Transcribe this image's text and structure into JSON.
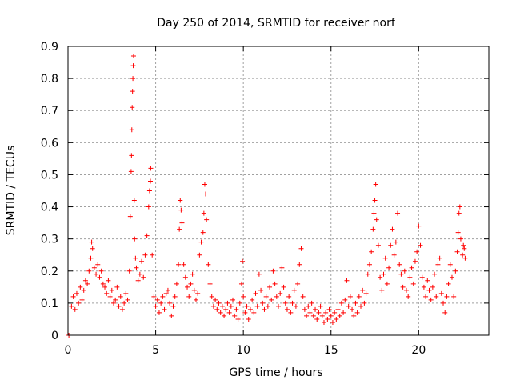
{
  "chart_data": {
    "type": "scatter",
    "title": "Day 250 of 2014, SRMTID for receiver norf",
    "xlabel": "GPS time / hours",
    "ylabel": "SRMTID / TECUs",
    "xlim": [
      0,
      24
    ],
    "ylim": [
      0,
      0.9
    ],
    "x_ticks": [
      0,
      5,
      10,
      15,
      20
    ],
    "x_tick_labels": [
      "0",
      "5",
      "10",
      "15",
      "20"
    ],
    "y_ticks": [
      0,
      0.1,
      0.2,
      0.3,
      0.4,
      0.5,
      0.6,
      0.7,
      0.8,
      0.9
    ],
    "y_tick_labels": [
      "0",
      "0.1",
      "0.2",
      "0.3",
      "0.4",
      "0.5",
      "0.6",
      "0.7",
      "0.8",
      "0.9"
    ],
    "grid": true,
    "legend": "none",
    "marker": "+",
    "series_color": "#ff0000",
    "series": [
      {
        "name": "SRMTID",
        "points": [
          [
            0.05,
            0.0
          ],
          [
            0.2,
            0.09
          ],
          [
            0.3,
            0.12
          ],
          [
            0.4,
            0.08
          ],
          [
            0.5,
            0.13
          ],
          [
            0.6,
            0.1
          ],
          [
            0.7,
            0.15
          ],
          [
            0.8,
            0.11
          ],
          [
            0.9,
            0.14
          ],
          [
            1.0,
            0.17
          ],
          [
            1.1,
            0.16
          ],
          [
            1.2,
            0.2
          ],
          [
            1.3,
            0.24
          ],
          [
            1.35,
            0.29
          ],
          [
            1.4,
            0.27
          ],
          [
            1.5,
            0.21
          ],
          [
            1.6,
            0.19
          ],
          [
            1.7,
            0.22
          ],
          [
            1.8,
            0.18
          ],
          [
            1.9,
            0.2
          ],
          [
            2.0,
            0.16
          ],
          [
            2.1,
            0.15
          ],
          [
            2.2,
            0.13
          ],
          [
            2.3,
            0.17
          ],
          [
            2.4,
            0.12
          ],
          [
            2.5,
            0.14
          ],
          [
            2.6,
            0.1
          ],
          [
            2.7,
            0.11
          ],
          [
            2.8,
            0.15
          ],
          [
            2.9,
            0.09
          ],
          [
            3.0,
            0.12
          ],
          [
            3.1,
            0.08
          ],
          [
            3.2,
            0.1
          ],
          [
            3.3,
            0.13
          ],
          [
            3.4,
            0.11
          ],
          [
            3.5,
            0.2
          ],
          [
            3.55,
            0.37
          ],
          [
            3.6,
            0.51
          ],
          [
            3.62,
            0.56
          ],
          [
            3.64,
            0.64
          ],
          [
            3.66,
            0.71
          ],
          [
            3.68,
            0.76
          ],
          [
            3.7,
            0.8
          ],
          [
            3.72,
            0.84
          ],
          [
            3.74,
            0.87
          ],
          [
            3.78,
            0.42
          ],
          [
            3.8,
            0.3
          ],
          [
            3.85,
            0.24
          ],
          [
            3.9,
            0.21
          ],
          [
            4.0,
            0.17
          ],
          [
            4.1,
            0.19
          ],
          [
            4.2,
            0.23
          ],
          [
            4.3,
            0.18
          ],
          [
            4.4,
            0.25
          ],
          [
            4.5,
            0.31
          ],
          [
            4.6,
            0.4
          ],
          [
            4.65,
            0.45
          ],
          [
            4.7,
            0.48
          ],
          [
            4.72,
            0.52
          ],
          [
            4.8,
            0.25
          ],
          [
            4.9,
            0.12
          ],
          [
            5.0,
            0.09
          ],
          [
            5.1,
            0.11
          ],
          [
            5.2,
            0.07
          ],
          [
            5.3,
            0.1
          ],
          [
            5.4,
            0.12
          ],
          [
            5.5,
            0.08
          ],
          [
            5.6,
            0.13
          ],
          [
            5.7,
            0.14
          ],
          [
            5.8,
            0.1
          ],
          [
            5.9,
            0.06
          ],
          [
            6.0,
            0.09
          ],
          [
            6.1,
            0.12
          ],
          [
            6.2,
            0.16
          ],
          [
            6.3,
            0.22
          ],
          [
            6.35,
            0.33
          ],
          [
            6.4,
            0.42
          ],
          [
            6.45,
            0.39
          ],
          [
            6.5,
            0.35
          ],
          [
            6.6,
            0.22
          ],
          [
            6.7,
            0.18
          ],
          [
            6.8,
            0.15
          ],
          [
            6.9,
            0.12
          ],
          [
            7.0,
            0.16
          ],
          [
            7.1,
            0.19
          ],
          [
            7.2,
            0.14
          ],
          [
            7.3,
            0.11
          ],
          [
            7.4,
            0.13
          ],
          [
            7.5,
            0.25
          ],
          [
            7.6,
            0.29
          ],
          [
            7.7,
            0.32
          ],
          [
            7.75,
            0.38
          ],
          [
            7.8,
            0.47
          ],
          [
            7.85,
            0.44
          ],
          [
            7.9,
            0.36
          ],
          [
            8.0,
            0.22
          ],
          [
            8.1,
            0.16
          ],
          [
            8.2,
            0.12
          ],
          [
            8.3,
            0.09
          ],
          [
            8.4,
            0.11
          ],
          [
            8.5,
            0.08
          ],
          [
            8.6,
            0.1
          ],
          [
            8.7,
            0.07
          ],
          [
            8.8,
            0.09
          ],
          [
            8.9,
            0.06
          ],
          [
            9.0,
            0.08
          ],
          [
            9.1,
            0.1
          ],
          [
            9.2,
            0.07
          ],
          [
            9.3,
            0.09
          ],
          [
            9.4,
            0.11
          ],
          [
            9.5,
            0.06
          ],
          [
            9.6,
            0.08
          ],
          [
            9.7,
            0.05
          ],
          [
            9.8,
            0.1
          ],
          [
            9.9,
            0.16
          ],
          [
            9.95,
            0.23
          ],
          [
            10.0,
            0.12
          ],
          [
            10.1,
            0.07
          ],
          [
            10.2,
            0.09
          ],
          [
            10.3,
            0.05
          ],
          [
            10.4,
            0.08
          ],
          [
            10.5,
            0.11
          ],
          [
            10.6,
            0.07
          ],
          [
            10.7,
            0.13
          ],
          [
            10.8,
            0.09
          ],
          [
            10.9,
            0.19
          ],
          [
            11.0,
            0.14
          ],
          [
            11.1,
            0.1
          ],
          [
            11.2,
            0.08
          ],
          [
            11.3,
            0.12
          ],
          [
            11.4,
            0.09
          ],
          [
            11.5,
            0.15
          ],
          [
            11.6,
            0.11
          ],
          [
            11.7,
            0.2
          ],
          [
            11.8,
            0.16
          ],
          [
            11.9,
            0.12
          ],
          [
            12.0,
            0.09
          ],
          [
            12.1,
            0.13
          ],
          [
            12.2,
            0.21
          ],
          [
            12.3,
            0.15
          ],
          [
            12.4,
            0.1
          ],
          [
            12.5,
            0.08
          ],
          [
            12.6,
            0.12
          ],
          [
            12.7,
            0.07
          ],
          [
            12.8,
            0.1
          ],
          [
            12.9,
            0.14
          ],
          [
            13.0,
            0.09
          ],
          [
            13.1,
            0.16
          ],
          [
            13.2,
            0.22
          ],
          [
            13.3,
            0.27
          ],
          [
            13.4,
            0.12
          ],
          [
            13.5,
            0.08
          ],
          [
            13.6,
            0.06
          ],
          [
            13.7,
            0.09
          ],
          [
            13.8,
            0.07
          ],
          [
            13.9,
            0.1
          ],
          [
            14.0,
            0.06
          ],
          [
            14.1,
            0.08
          ],
          [
            14.2,
            0.05
          ],
          [
            14.3,
            0.07
          ],
          [
            14.4,
            0.09
          ],
          [
            14.5,
            0.06
          ],
          [
            14.6,
            0.04
          ],
          [
            14.7,
            0.07
          ],
          [
            14.8,
            0.05
          ],
          [
            14.9,
            0.08
          ],
          [
            15.0,
            0.06
          ],
          [
            15.1,
            0.04
          ],
          [
            15.2,
            0.07
          ],
          [
            15.3,
            0.05
          ],
          [
            15.4,
            0.08
          ],
          [
            15.5,
            0.06
          ],
          [
            15.6,
            0.1
          ],
          [
            15.7,
            0.07
          ],
          [
            15.8,
            0.11
          ],
          [
            15.9,
            0.17
          ],
          [
            16.0,
            0.09
          ],
          [
            16.1,
            0.12
          ],
          [
            16.2,
            0.08
          ],
          [
            16.3,
            0.06
          ],
          [
            16.4,
            0.1
          ],
          [
            16.5,
            0.07
          ],
          [
            16.6,
            0.12
          ],
          [
            16.7,
            0.09
          ],
          [
            16.8,
            0.14
          ],
          [
            16.9,
            0.1
          ],
          [
            17.0,
            0.13
          ],
          [
            17.1,
            0.19
          ],
          [
            17.2,
            0.22
          ],
          [
            17.3,
            0.26
          ],
          [
            17.4,
            0.33
          ],
          [
            17.45,
            0.38
          ],
          [
            17.5,
            0.42
          ],
          [
            17.55,
            0.47
          ],
          [
            17.6,
            0.36
          ],
          [
            17.7,
            0.28
          ],
          [
            17.8,
            0.18
          ],
          [
            17.9,
            0.14
          ],
          [
            18.0,
            0.19
          ],
          [
            18.1,
            0.24
          ],
          [
            18.2,
            0.16
          ],
          [
            18.3,
            0.21
          ],
          [
            18.4,
            0.28
          ],
          [
            18.5,
            0.33
          ],
          [
            18.6,
            0.25
          ],
          [
            18.7,
            0.29
          ],
          [
            18.8,
            0.38
          ],
          [
            18.9,
            0.22
          ],
          [
            19.0,
            0.19
          ],
          [
            19.1,
            0.15
          ],
          [
            19.2,
            0.2
          ],
          [
            19.3,
            0.14
          ],
          [
            19.4,
            0.12
          ],
          [
            19.5,
            0.18
          ],
          [
            19.6,
            0.21
          ],
          [
            19.7,
            0.16
          ],
          [
            19.8,
            0.23
          ],
          [
            19.9,
            0.26
          ],
          [
            20.0,
            0.34
          ],
          [
            20.1,
            0.28
          ],
          [
            20.2,
            0.18
          ],
          [
            20.3,
            0.15
          ],
          [
            20.4,
            0.12
          ],
          [
            20.5,
            0.17
          ],
          [
            20.6,
            0.14
          ],
          [
            20.7,
            0.11
          ],
          [
            20.8,
            0.15
          ],
          [
            20.9,
            0.19
          ],
          [
            21.0,
            0.12
          ],
          [
            21.1,
            0.22
          ],
          [
            21.2,
            0.24
          ],
          [
            21.3,
            0.13
          ],
          [
            21.4,
            0.1
          ],
          [
            21.5,
            0.07
          ],
          [
            21.6,
            0.12
          ],
          [
            21.7,
            0.16
          ],
          [
            21.8,
            0.22
          ],
          [
            21.9,
            0.18
          ],
          [
            22.0,
            0.12
          ],
          [
            22.1,
            0.2
          ],
          [
            22.2,
            0.26
          ],
          [
            22.25,
            0.32
          ],
          [
            22.3,
            0.38
          ],
          [
            22.35,
            0.4
          ],
          [
            22.4,
            0.3
          ],
          [
            22.5,
            0.25
          ],
          [
            22.55,
            0.28
          ],
          [
            22.6,
            0.27
          ],
          [
            22.65,
            0.24
          ]
        ]
      }
    ]
  }
}
